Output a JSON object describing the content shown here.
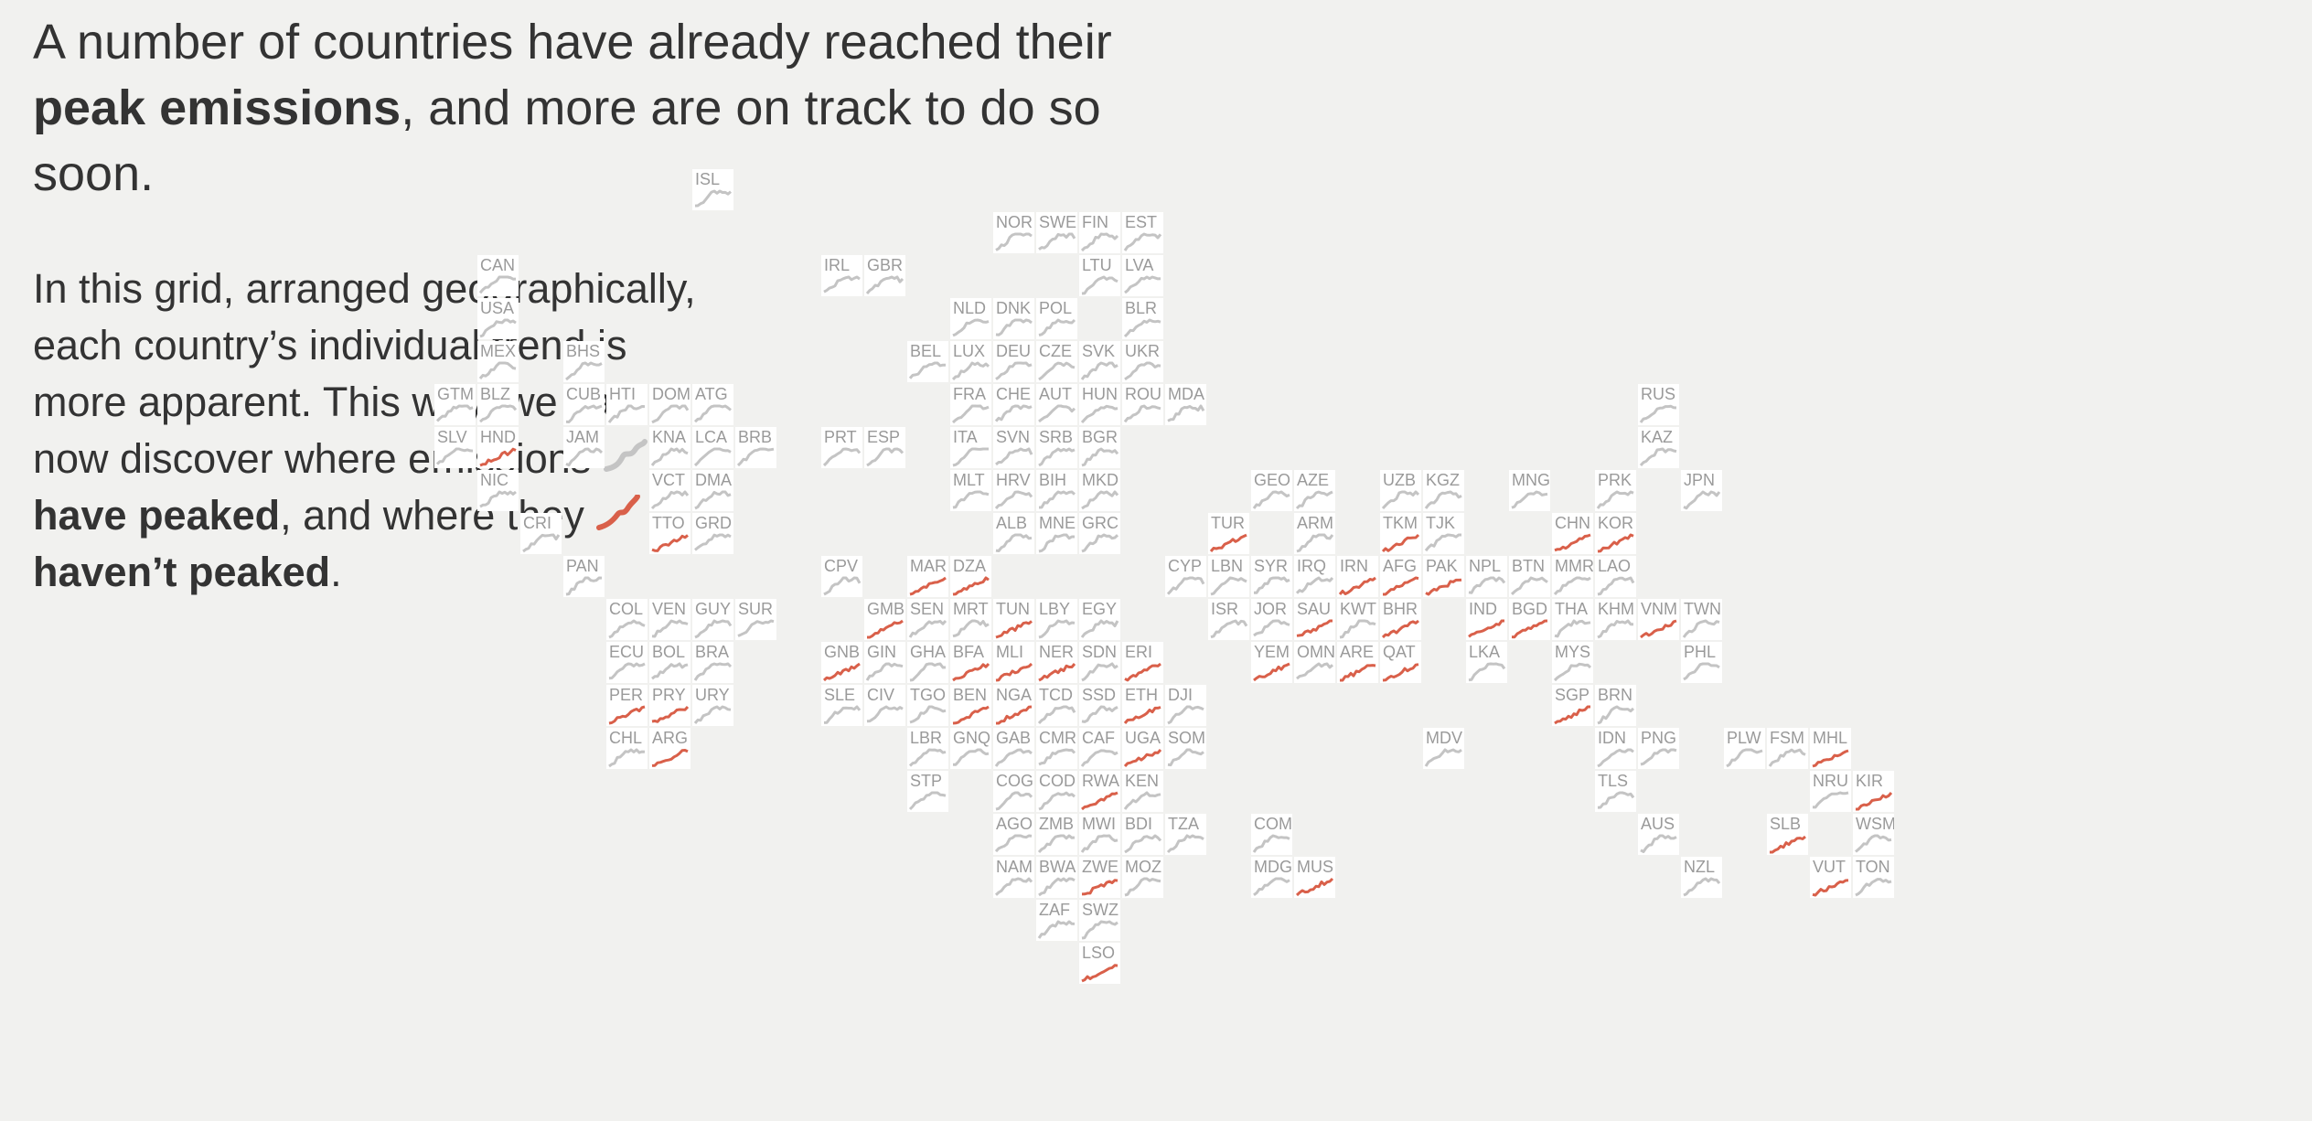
{
  "headline": {
    "part1": "A number of countries have already reached their ",
    "bold": "peak emissions",
    "part2": ", and more are on track to do so soon."
  },
  "intro": {
    "text1": "In this grid, arranged geographically, each country’s individual trend is more apparent. This way, we can now discover where emissions ",
    "peaked_label": "have peaked",
    "text2": ", and where they ",
    "not_peaked_label": "haven’t peaked",
    "text3": "."
  },
  "colors": {
    "peaked": "#c4c4c4",
    "not_peaked": "#d9604a",
    "cell_bg": "#ffffff",
    "code_text": "#9a9a9a",
    "page_bg": "#f1f1ef"
  },
  "chart_data": {
    "type": "tile grid map of small-multiple line charts",
    "legend": [
      {
        "label": "have peaked",
        "color": "#c4c4c4"
      },
      {
        "label": "haven’t peaked",
        "color": "#d9604a"
      }
    ],
    "rows": [
      [
        [
          "ISL",
          12,
          0
        ]
      ],
      [
        [
          "NOR",
          19,
          0
        ],
        [
          "SWE",
          20,
          0
        ],
        [
          "FIN",
          21,
          0
        ],
        [
          "EST",
          22,
          0
        ]
      ],
      [
        [
          "CAN",
          7,
          0
        ],
        [
          "IRL",
          15,
          0
        ],
        [
          "GBR",
          16,
          0
        ],
        [
          "LTU",
          21,
          0
        ],
        [
          "LVA",
          22,
          0
        ]
      ],
      [
        [
          "USA",
          7,
          0
        ],
        [
          "NLD",
          18,
          0
        ],
        [
          "DNK",
          19,
          0
        ],
        [
          "POL",
          20,
          0
        ],
        [
          "BLR",
          22,
          0
        ]
      ],
      [
        [
          "MEX",
          7,
          0
        ],
        [
          "BHS",
          9,
          0
        ],
        [
          "BEL",
          17,
          0
        ],
        [
          "LUX",
          18,
          0
        ],
        [
          "DEU",
          19,
          0
        ],
        [
          "CZE",
          20,
          0
        ],
        [
          "SVK",
          21,
          0
        ],
        [
          "UKR",
          22,
          0
        ]
      ],
      [
        [
          "GTM",
          6,
          0
        ],
        [
          "BLZ",
          7,
          0
        ],
        [
          "CUB",
          9,
          0
        ],
        [
          "HTI",
          10,
          0
        ],
        [
          "DOM",
          11,
          0
        ],
        [
          "ATG",
          12,
          0
        ],
        [
          "FRA",
          18,
          0
        ],
        [
          "CHE",
          19,
          0
        ],
        [
          "AUT",
          20,
          0
        ],
        [
          "HUN",
          21,
          0
        ],
        [
          "ROU",
          22,
          0
        ],
        [
          "MDA",
          23,
          0
        ],
        [
          "RUS",
          34,
          0
        ]
      ],
      [
        [
          "SLV",
          6,
          0
        ],
        [
          "HND",
          7,
          1
        ],
        [
          "JAM",
          9,
          0
        ],
        [
          "KNA",
          11,
          0
        ],
        [
          "LCA",
          12,
          0
        ],
        [
          "BRB",
          13,
          0
        ],
        [
          "PRT",
          15,
          0
        ],
        [
          "ESP",
          16,
          0
        ],
        [
          "ITA",
          18,
          0
        ],
        [
          "SVN",
          19,
          0
        ],
        [
          "SRB",
          20,
          0
        ],
        [
          "BGR",
          21,
          0
        ],
        [
          "KAZ",
          34,
          0
        ]
      ],
      [
        [
          "NIC",
          7,
          0
        ],
        [
          "VCT",
          11,
          0
        ],
        [
          "DMA",
          12,
          0
        ],
        [
          "MLT",
          18,
          0
        ],
        [
          "HRV",
          19,
          0
        ],
        [
          "BIH",
          20,
          0
        ],
        [
          "MKD",
          21,
          0
        ],
        [
          "GEO",
          25,
          0
        ],
        [
          "AZE",
          26,
          0
        ],
        [
          "UZB",
          28,
          0
        ],
        [
          "KGZ",
          29,
          0
        ],
        [
          "MNG",
          31,
          0
        ],
        [
          "PRK",
          33,
          0
        ],
        [
          "JPN",
          35,
          0
        ]
      ],
      [
        [
          "CRI",
          8,
          0
        ],
        [
          "TTO",
          11,
          1
        ],
        [
          "GRD",
          12,
          0
        ],
        [
          "ALB",
          19,
          0
        ],
        [
          "MNE",
          20,
          0
        ],
        [
          "GRC",
          21,
          0
        ],
        [
          "TUR",
          24,
          1
        ],
        [
          "ARM",
          26,
          0
        ],
        [
          "TKM",
          28,
          1
        ],
        [
          "TJK",
          29,
          0
        ],
        [
          "CHN",
          32,
          1
        ],
        [
          "KOR",
          33,
          1
        ]
      ],
      [
        [
          "PAN",
          9,
          0
        ],
        [
          "CPV",
          15,
          0
        ],
        [
          "MAR",
          17,
          1
        ],
        [
          "DZA",
          18,
          1
        ],
        [
          "CYP",
          23,
          0
        ],
        [
          "LBN",
          24,
          0
        ],
        [
          "SYR",
          25,
          0
        ],
        [
          "IRQ",
          26,
          0
        ],
        [
          "IRN",
          27,
          1
        ],
        [
          "AFG",
          28,
          1
        ],
        [
          "PAK",
          29,
          1
        ],
        [
          "NPL",
          30,
          0
        ],
        [
          "BTN",
          31,
          0
        ],
        [
          "MMR",
          32,
          0
        ],
        [
          "LAO",
          33,
          0
        ]
      ],
      [
        [
          "COL",
          10,
          0
        ],
        [
          "VEN",
          11,
          0
        ],
        [
          "GUY",
          12,
          0
        ],
        [
          "SUR",
          13,
          0
        ],
        [
          "GMB",
          16,
          1
        ],
        [
          "SEN",
          17,
          0
        ],
        [
          "MRT",
          18,
          0
        ],
        [
          "TUN",
          19,
          1
        ],
        [
          "LBY",
          20,
          0
        ],
        [
          "EGY",
          21,
          0
        ],
        [
          "ISR",
          24,
          0
        ],
        [
          "JOR",
          25,
          0
        ],
        [
          "SAU",
          26,
          1
        ],
        [
          "KWT",
          27,
          0
        ],
        [
          "BHR",
          28,
          1
        ],
        [
          "IND",
          30,
          1
        ],
        [
          "BGD",
          31,
          1
        ],
        [
          "THA",
          32,
          0
        ],
        [
          "KHM",
          33,
          0
        ],
        [
          "VNM",
          34,
          1
        ],
        [
          "TWN",
          35,
          0
        ]
      ],
      [
        [
          "ECU",
          10,
          0
        ],
        [
          "BOL",
          11,
          0
        ],
        [
          "BRA",
          12,
          0
        ],
        [
          "GNB",
          15,
          1
        ],
        [
          "GIN",
          16,
          0
        ],
        [
          "GHA",
          17,
          0
        ],
        [
          "BFA",
          18,
          1
        ],
        [
          "MLI",
          19,
          1
        ],
        [
          "NER",
          20,
          1
        ],
        [
          "SDN",
          21,
          0
        ],
        [
          "ERI",
          22,
          1
        ],
        [
          "YEM",
          25,
          1
        ],
        [
          "OMN",
          26,
          0
        ],
        [
          "ARE",
          27,
          1
        ],
        [
          "QAT",
          28,
          1
        ],
        [
          "LKA",
          30,
          0
        ],
        [
          "MYS",
          32,
          0
        ],
        [
          "PHL",
          35,
          0
        ]
      ],
      [
        [
          "PER",
          10,
          1
        ],
        [
          "PRY",
          11,
          1
        ],
        [
          "URY",
          12,
          0
        ],
        [
          "SLE",
          15,
          0
        ],
        [
          "CIV",
          16,
          0
        ],
        [
          "TGO",
          17,
          0
        ],
        [
          "BEN",
          18,
          1
        ],
        [
          "NGA",
          19,
          1
        ],
        [
          "TCD",
          20,
          0
        ],
        [
          "SSD",
          21,
          0
        ],
        [
          "ETH",
          22,
          1
        ],
        [
          "DJI",
          23,
          0
        ],
        [
          "SGP",
          32,
          1
        ],
        [
          "BRN",
          33,
          0
        ]
      ],
      [
        [
          "CHL",
          10,
          0
        ],
        [
          "ARG",
          11,
          1
        ],
        [
          "LBR",
          17,
          0
        ],
        [
          "GNQ",
          18,
          0
        ],
        [
          "GAB",
          19,
          0
        ],
        [
          "CMR",
          20,
          0
        ],
        [
          "CAF",
          21,
          0
        ],
        [
          "UGA",
          22,
          1
        ],
        [
          "SOM",
          23,
          0
        ],
        [
          "MDV",
          29,
          0
        ],
        [
          "IDN",
          33,
          0
        ],
        [
          "PNG",
          34,
          0
        ],
        [
          "PLW",
          36,
          0
        ],
        [
          "FSM",
          37,
          0
        ],
        [
          "MHL",
          38,
          1
        ]
      ],
      [
        [
          "STP",
          17,
          0
        ],
        [
          "COG",
          19,
          0
        ],
        [
          "COD",
          20,
          0
        ],
        [
          "RWA",
          21,
          1
        ],
        [
          "KEN",
          22,
          0
        ],
        [
          "TLS",
          33,
          0
        ],
        [
          "NRU",
          38,
          0
        ],
        [
          "KIR",
          39,
          1
        ]
      ],
      [
        [
          "AGO",
          19,
          0
        ],
        [
          "ZMB",
          20,
          0
        ],
        [
          "MWI",
          21,
          0
        ],
        [
          "BDI",
          22,
          0
        ],
        [
          "TZA",
          23,
          0
        ],
        [
          "COM",
          25,
          0
        ],
        [
          "AUS",
          34,
          0
        ],
        [
          "SLB",
          37,
          1
        ],
        [
          "WSM",
          39,
          0
        ]
      ],
      [
        [
          "NAM",
          19,
          0
        ],
        [
          "BWA",
          20,
          0
        ],
        [
          "ZWE",
          21,
          1
        ],
        [
          "MOZ",
          22,
          0
        ],
        [
          "MDG",
          25,
          0
        ],
        [
          "MUS",
          26,
          1
        ],
        [
          "NZL",
          35,
          0
        ],
        [
          "VUT",
          38,
          1
        ],
        [
          "TON",
          39,
          0
        ]
      ],
      [
        [
          "ZAF",
          20,
          0
        ],
        [
          "SWZ",
          21,
          0
        ]
      ],
      [
        [
          "LSO",
          21,
          1
        ]
      ]
    ]
  }
}
